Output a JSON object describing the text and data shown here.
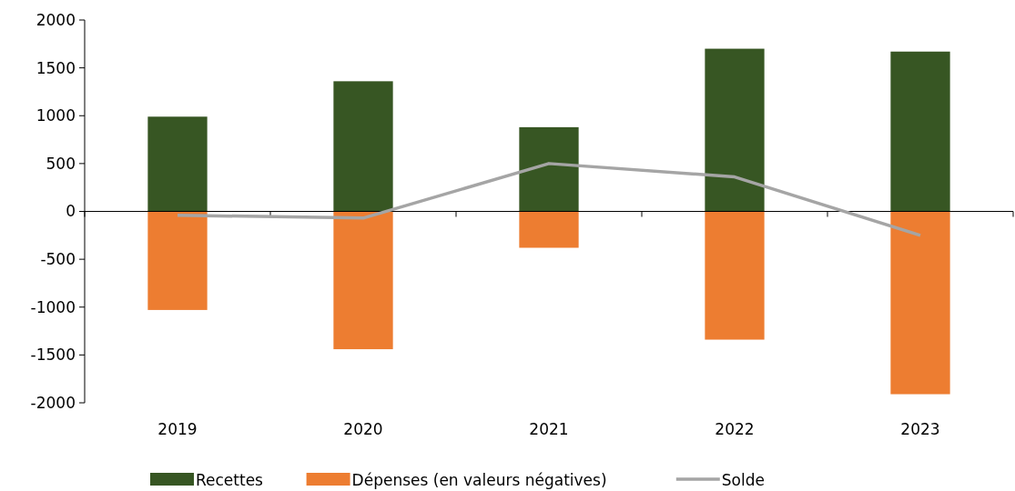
{
  "chart_data": {
    "type": "bar",
    "categories": [
      "2019",
      "2020",
      "2021",
      "2022",
      "2023"
    ],
    "stacked": true,
    "series": [
      {
        "name": "Recettes",
        "color": "#375623",
        "values": [
          990,
          1360,
          880,
          1700,
          1670
        ]
      },
      {
        "name": "Dépenses (en valeurs négatives)",
        "color": "#ed7d31",
        "values": [
          -1030,
          -1440,
          -380,
          -1340,
          -1910
        ]
      },
      {
        "name": "Solde",
        "type": "line",
        "color": "#a5a5a5",
        "values": [
          -40,
          -70,
          500,
          360,
          -250
        ]
      }
    ],
    "ylim": [
      -2000,
      2000
    ],
    "yticks": [
      -2000,
      -1500,
      -1000,
      -500,
      0,
      500,
      1000,
      1500,
      2000
    ],
    "legend": "bottom",
    "marker": "none",
    "line_style": "solid"
  }
}
